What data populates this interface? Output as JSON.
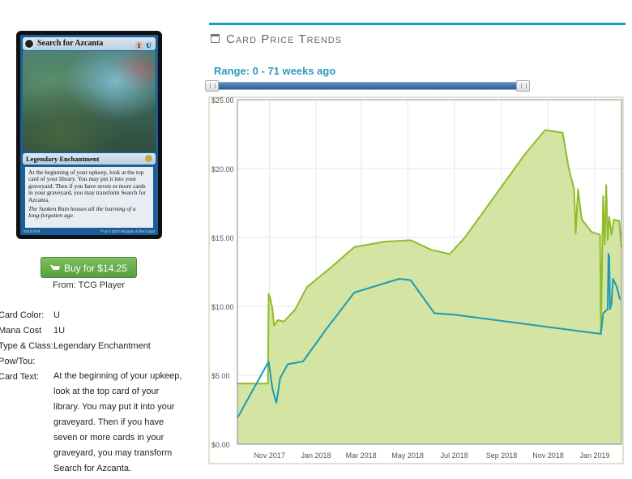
{
  "card": {
    "name": "Search for Azcanta",
    "mana_generic": "1",
    "mana_blue": "U",
    "type_line": "Legendary Enchantment",
    "rules_text": "At the beginning of your upkeep, look at the top card of your library. You may put it into your graveyard. Then if you have seven or more cards in your graveyard, you may transform Search for Azcanta.",
    "flavor_text": "The Sunken Ruin houses all the learning of a long-forgotten age.",
    "collector": "074/279 R",
    "copyright": "™ & © 2017 Wizards of the Coast"
  },
  "buy": {
    "label": "Buy for $14.25",
    "icon": "shopping-cart-icon",
    "color": "#6aae4c"
  },
  "source": {
    "text": "From: TCG Player"
  },
  "details": [
    {
      "label": "Card Color:",
      "value": "U"
    },
    {
      "label": "Mana Cost",
      "value": "1U"
    },
    {
      "label": "Type & Class:",
      "value": "Legendary Enchantment"
    },
    {
      "label": "Pow/Tou:",
      "value": ""
    },
    {
      "label": "Card Text:",
      "value": "At the beginning of your upkeep, look at the top card of your library. You may put it into your graveyard. Then if you have seven or more cards in your graveyard, you may transform Search for Azcanta."
    }
  ],
  "section": {
    "title": "Card Price Trends",
    "icon": "calendar-icon",
    "accent": "#17a0b4"
  },
  "range": {
    "label": "Range: 0 - 71 weeks ago",
    "min_weeks": 0,
    "max_weeks": 71
  },
  "chart_data": {
    "type": "area",
    "ylim": [
      0,
      25
    ],
    "xlim": [
      "2017-09-20",
      "2019-02-05"
    ],
    "yticks": [
      "$0.00",
      "$5.00",
      "$10.00",
      "$15.00",
      "$20.00",
      "$25.00"
    ],
    "ytick_values": [
      0,
      5,
      10,
      15,
      20,
      25
    ],
    "xticks": [
      "Nov 2017",
      "Jan 2018",
      "Mar 2018",
      "May 2018",
      "Jul 2018",
      "Sep 2018",
      "Nov 2018",
      "Jan 2019"
    ],
    "xtick_dates": [
      "2017-11-01",
      "2018-01-01",
      "2018-03-01",
      "2018-05-01",
      "2018-07-01",
      "2018-09-01",
      "2018-11-01",
      "2019-01-01"
    ],
    "grid": true,
    "series": [
      {
        "color": "#8fbc2a",
        "fill": "#d4e4a3",
        "points": [
          [
            "2017-09-20",
            4.4
          ],
          [
            "2017-10-30",
            4.4
          ],
          [
            "2017-10-31",
            10.9
          ],
          [
            "2017-11-02",
            10.6
          ],
          [
            "2017-11-05",
            9.8
          ],
          [
            "2017-11-07",
            8.6
          ],
          [
            "2017-11-12",
            9.0
          ],
          [
            "2017-11-20",
            8.9
          ],
          [
            "2017-12-05",
            9.8
          ],
          [
            "2017-12-20",
            11.4
          ],
          [
            "2018-01-20",
            12.8
          ],
          [
            "2018-02-20",
            14.3
          ],
          [
            "2018-04-01",
            14.7
          ],
          [
            "2018-05-05",
            14.8
          ],
          [
            "2018-06-01",
            14.1
          ],
          [
            "2018-06-25",
            13.8
          ],
          [
            "2018-07-15",
            15.0
          ],
          [
            "2018-10-01",
            21.0
          ],
          [
            "2018-10-28",
            22.8
          ],
          [
            "2018-11-20",
            22.6
          ],
          [
            "2018-11-28",
            20.0
          ],
          [
            "2018-12-05",
            18.5
          ],
          [
            "2018-12-07",
            15.3
          ],
          [
            "2018-12-10",
            18.5
          ],
          [
            "2018-12-15",
            16.3
          ],
          [
            "2018-12-28",
            15.4
          ],
          [
            "2019-01-08",
            15.2
          ],
          [
            "2019-01-09",
            8.0
          ],
          [
            "2019-01-12",
            18.0
          ],
          [
            "2019-01-14",
            14.5
          ],
          [
            "2019-01-16",
            18.8
          ],
          [
            "2019-01-18",
            14.8
          ],
          [
            "2019-01-20",
            16.5
          ],
          [
            "2019-01-23",
            15.2
          ],
          [
            "2019-01-26",
            16.3
          ],
          [
            "2019-02-02",
            16.2
          ],
          [
            "2019-02-05",
            14.3
          ]
        ]
      },
      {
        "color": "#1f9ab3",
        "points": [
          [
            "2017-09-20",
            1.9
          ],
          [
            "2017-10-31",
            6.0
          ],
          [
            "2017-11-05",
            4.0
          ],
          [
            "2017-11-10",
            3.0
          ],
          [
            "2017-11-15",
            4.8
          ],
          [
            "2017-11-25",
            5.8
          ],
          [
            "2017-12-15",
            6.0
          ],
          [
            "2018-01-15",
            8.4
          ],
          [
            "2018-02-20",
            11.0
          ],
          [
            "2018-04-20",
            12.0
          ],
          [
            "2018-05-05",
            11.9
          ],
          [
            "2018-06-05",
            9.5
          ],
          [
            "2018-07-01",
            9.4
          ],
          [
            "2019-01-09",
            8.0
          ],
          [
            "2019-01-12",
            9.5
          ],
          [
            "2019-01-18",
            9.8
          ],
          [
            "2019-01-19",
            13.8
          ],
          [
            "2019-01-20",
            13.6
          ],
          [
            "2019-01-21",
            9.8
          ],
          [
            "2019-01-23",
            10.2
          ],
          [
            "2019-01-25",
            12.0
          ],
          [
            "2019-01-30",
            11.4
          ],
          [
            "2019-02-03",
            10.5
          ]
        ]
      }
    ]
  }
}
